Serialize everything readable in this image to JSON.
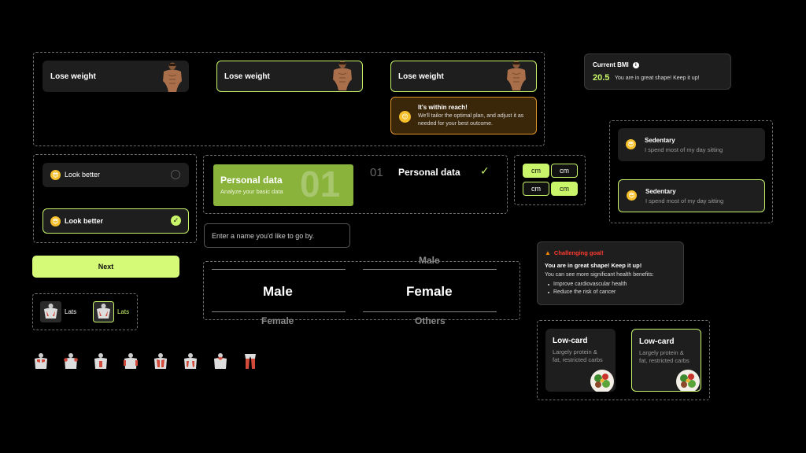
{
  "goal": {
    "label": "Lose weight"
  },
  "tooltip": {
    "title": "It's within reach!",
    "body": "We'll tailor the optimal plan, and adjust it as needed for your best outcome."
  },
  "bmi": {
    "label": "Current BMI",
    "value": "20.5",
    "message": "You are in great shape! Keep it up!"
  },
  "activity": {
    "title": "Sedentary",
    "desc": "I spend most of my day sitting"
  },
  "look": {
    "label": "Look better"
  },
  "step": {
    "title": "Personal data",
    "subtitle": "Analyze your basic data",
    "number": "01",
    "number_short": "01"
  },
  "units": {
    "cm": "cm"
  },
  "name_input": {
    "placeholder": "Enter a name you'd like to go by."
  },
  "next_button": {
    "label": "Next"
  },
  "gender": {
    "above": "Male",
    "male": "Male",
    "female": "Female",
    "below_left": "Female",
    "below_right": "Others"
  },
  "muscle_chip": {
    "label": "Lats"
  },
  "challenge": {
    "title": "Challenging goal!",
    "headline": "You are in great shape! Keep it up!",
    "lead": "You can see more significant health benefits:",
    "benefits": [
      "Improve cardiovascular health",
      "Reduce the risk of cancer"
    ]
  },
  "diet": {
    "title": "Low-card",
    "desc": "Largely protein & fat, restricted carbs"
  },
  "colors": {
    "accent": "#c8f56a",
    "card": "#1e1e1e",
    "warn_bg": "#3a2608",
    "warn_border": "#e0952a",
    "challenge_red": "#ff3b30"
  }
}
